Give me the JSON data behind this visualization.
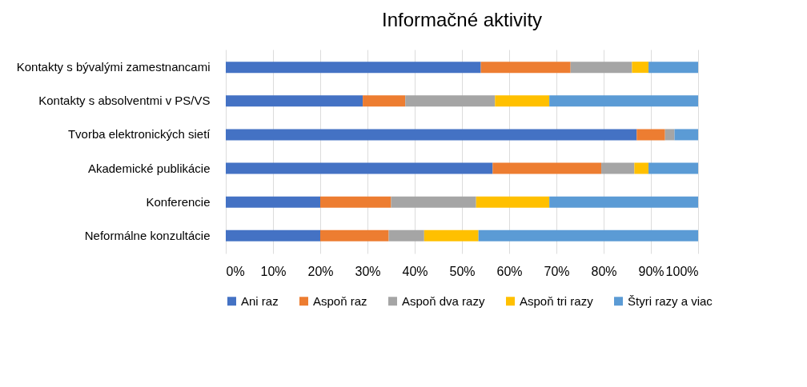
{
  "chart_data": {
    "type": "bar",
    "title": "Informačné aktivity",
    "orientation": "horizontal",
    "stacked": true,
    "categories": [
      "Kontakty s bývalými zamestnancami",
      "Kontakty s absolventmi v PS/VS",
      "Tvorba elektronických sietí",
      "Akademické publikácie",
      "Konferencie",
      "Neformálne konzultácie"
    ],
    "series": [
      {
        "name": "Ani raz",
        "color": "#4472c4",
        "values": [
          54,
          29,
          87,
          56.5,
          20,
          20
        ]
      },
      {
        "name": "Aspoň raz",
        "color": "#ed7d31",
        "values": [
          19,
          9,
          6,
          23,
          15,
          14.5
        ]
      },
      {
        "name": "Aspoň dva razy",
        "color": "#a5a5a5",
        "values": [
          13,
          19,
          2,
          7,
          18,
          7.5
        ]
      },
      {
        "name": "Aspoň tri razy",
        "color": "#ffc000",
        "values": [
          3.5,
          11.5,
          0,
          3,
          15.5,
          11.5
        ]
      },
      {
        "name": "Štyri razy a viac",
        "color": "#5b9bd5",
        "values": [
          10.5,
          31.5,
          5,
          10.5,
          31.5,
          46.5
        ]
      }
    ],
    "xlim": [
      0,
      100
    ],
    "xticks": [
      {
        "value": 0,
        "label": "0%"
      },
      {
        "value": 10,
        "label": "10%"
      },
      {
        "value": 20,
        "label": "20%"
      },
      {
        "value": 30,
        "label": "30%"
      },
      {
        "value": 40,
        "label": "40%"
      },
      {
        "value": 50,
        "label": "50%"
      },
      {
        "value": 60,
        "label": "60%"
      },
      {
        "value": 70,
        "label": "70%"
      },
      {
        "value": 80,
        "label": "80%"
      },
      {
        "value": 90,
        "label": "90%"
      },
      {
        "value": 100,
        "label": "100%"
      }
    ],
    "grid": "x",
    "legend": "bottom"
  }
}
